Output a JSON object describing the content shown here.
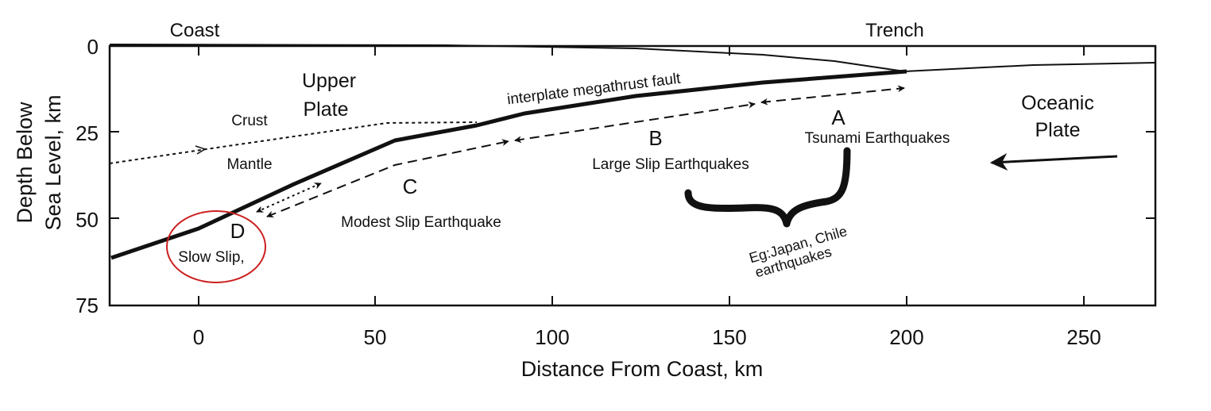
{
  "axes": {
    "xlabel": "Distance From Coast, km",
    "ylabel_line1": "Depth Below",
    "ylabel_line2": "Sea Level, km",
    "x_ticks": [
      "0",
      "50",
      "100",
      "150",
      "200",
      "250"
    ],
    "y_ticks": [
      "0",
      "25",
      "50",
      "75"
    ],
    "top_left": "Coast",
    "top_right": "Trench"
  },
  "labels": {
    "upper": "Upper",
    "plate": "Plate",
    "crust": "Crust",
    "mantle": "Mantle",
    "fault": "interplate megathrust fault",
    "oceanic": "Oceanic",
    "oceanic_plate": "Plate",
    "A": "A",
    "tsunami": "Tsunami Earthquakes",
    "B": "B",
    "large_slip": "Large Slip Earthquakes",
    "C": "C",
    "modest_slip": "Modest Slip Earthquake",
    "D": "D",
    "slow_slip": "Slow Slip,",
    "eg_line1": "Eg:Japan, Chile",
    "eg_line2": "earthquakes"
  },
  "colors": {
    "ink": "#111111",
    "highlight_circle": "#cc1f1f"
  }
}
